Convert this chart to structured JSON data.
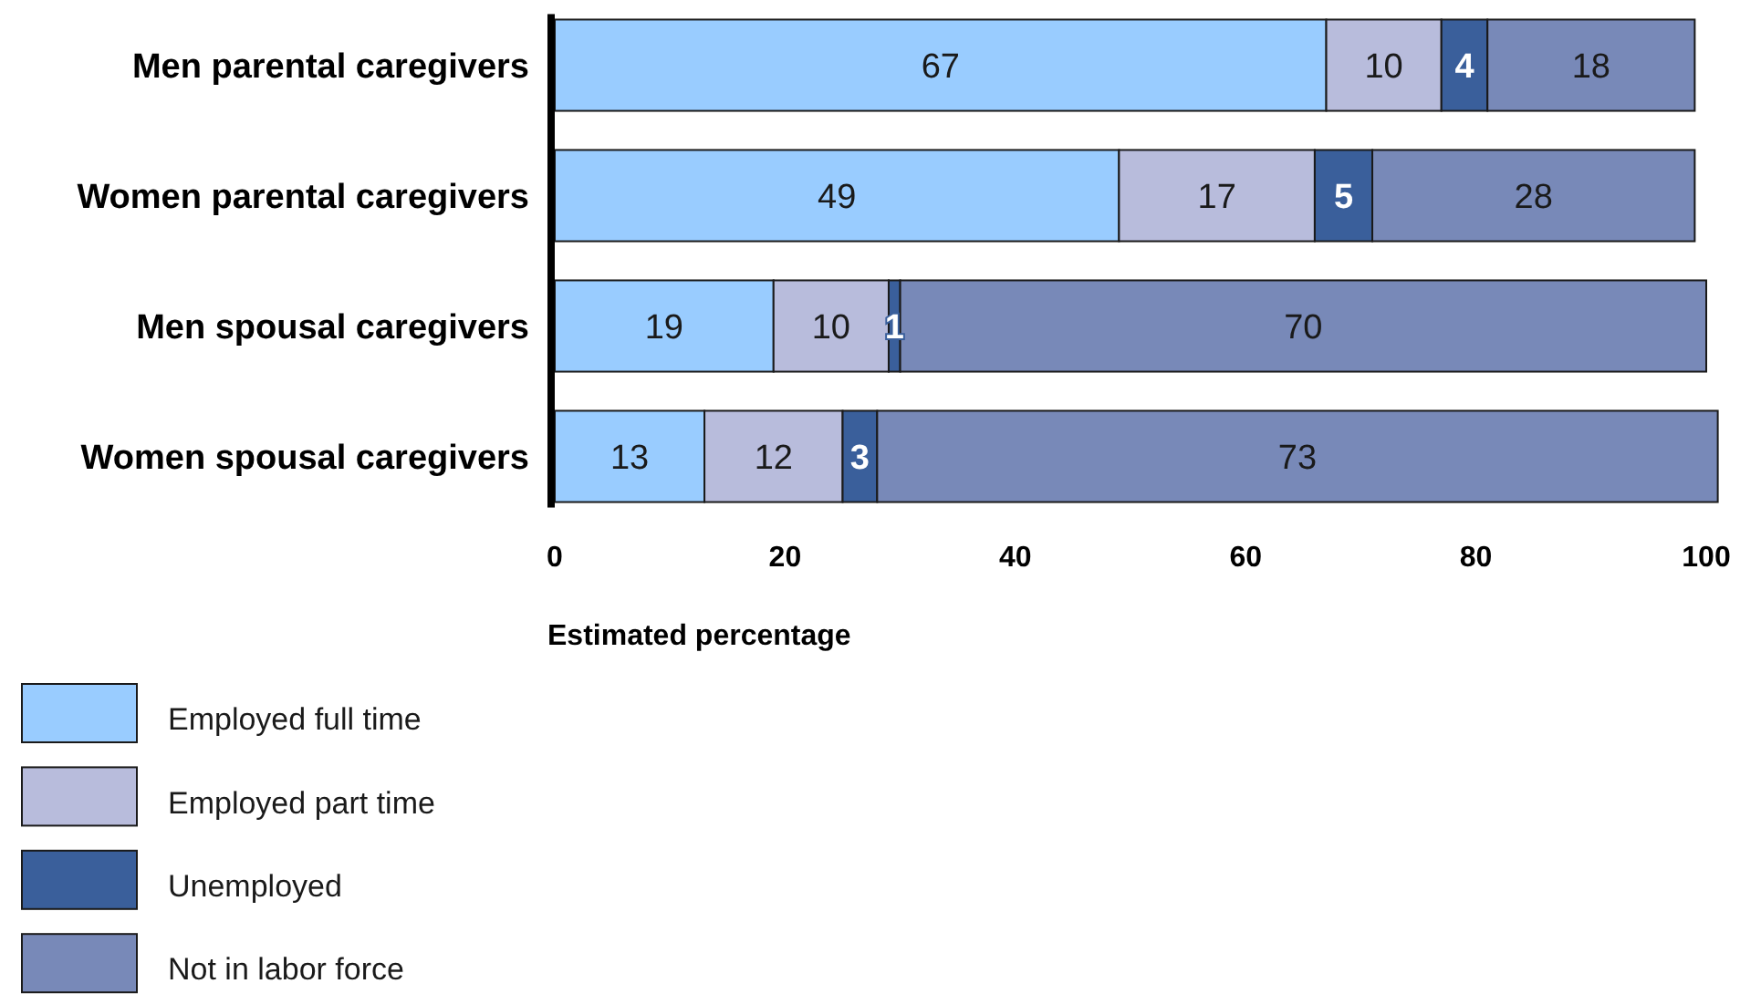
{
  "chart_data": {
    "type": "bar",
    "orientation": "horizontal",
    "stacked": true,
    "categories": [
      "Men parental caregivers",
      "Women parental caregivers",
      "Men spousal caregivers",
      "Women spousal caregivers"
    ],
    "series": [
      {
        "name": "Employed full time",
        "color": "#99ccff",
        "values": [
          67,
          49,
          19,
          13
        ]
      },
      {
        "name": "Employed part time",
        "color": "#b8bcdc",
        "values": [
          10,
          17,
          10,
          12
        ]
      },
      {
        "name": "Unemployed",
        "color": "#3a5f9b",
        "values": [
          4,
          5,
          1,
          3
        ]
      },
      {
        "name": "Not in labor force",
        "color": "#7889b8",
        "values": [
          18,
          28,
          70,
          73
        ]
      }
    ],
    "xlim": [
      0,
      101
    ],
    "xticks": [
      0,
      20,
      40,
      60,
      80,
      100
    ],
    "xlabel": "Estimated percentage",
    "data_labels": true,
    "legend": "bottom left"
  }
}
